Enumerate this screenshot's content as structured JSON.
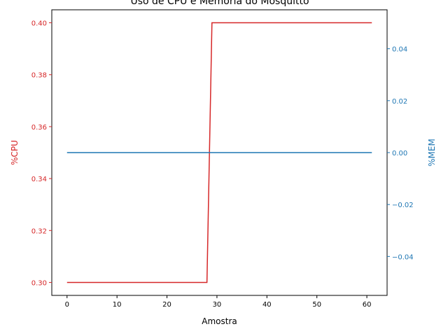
{
  "chart_data": {
    "type": "line",
    "title": "Uso de CPU e Memória do Mosquitto",
    "xlabel": "Amostra",
    "ylabel_left": "%CPU",
    "ylabel_right": "%MEM",
    "xlim": [
      -3.05,
      64.05
    ],
    "ylim_left": [
      0.295,
      0.405
    ],
    "ylim_right": [
      -0.055,
      0.055
    ],
    "xticks": [
      0,
      10,
      20,
      30,
      40,
      50,
      60
    ],
    "xtick_labels": [
      "0",
      "10",
      "20",
      "30",
      "40",
      "50",
      "60"
    ],
    "yticks_left": [
      0.3,
      0.32,
      0.34,
      0.36,
      0.38,
      0.4
    ],
    "ytick_labels_left": [
      "0.30",
      "0.32",
      "0.34",
      "0.36",
      "0.38",
      "0.40"
    ],
    "yticks_right": [
      -0.04,
      -0.02,
      0.0,
      0.02,
      0.04
    ],
    "ytick_labels_right": [
      "−0.04",
      "−0.02",
      "0.00",
      "0.02",
      "0.04"
    ],
    "grid": false,
    "series": [
      {
        "axis": "left",
        "color": "#d62728",
        "x": [
          0,
          28,
          29,
          61
        ],
        "y": [
          0.3,
          0.3,
          0.4,
          0.4
        ]
      },
      {
        "axis": "right",
        "color": "#1f77b4",
        "x": [
          0,
          61
        ],
        "y": [
          0.0,
          0.0
        ]
      }
    ]
  }
}
